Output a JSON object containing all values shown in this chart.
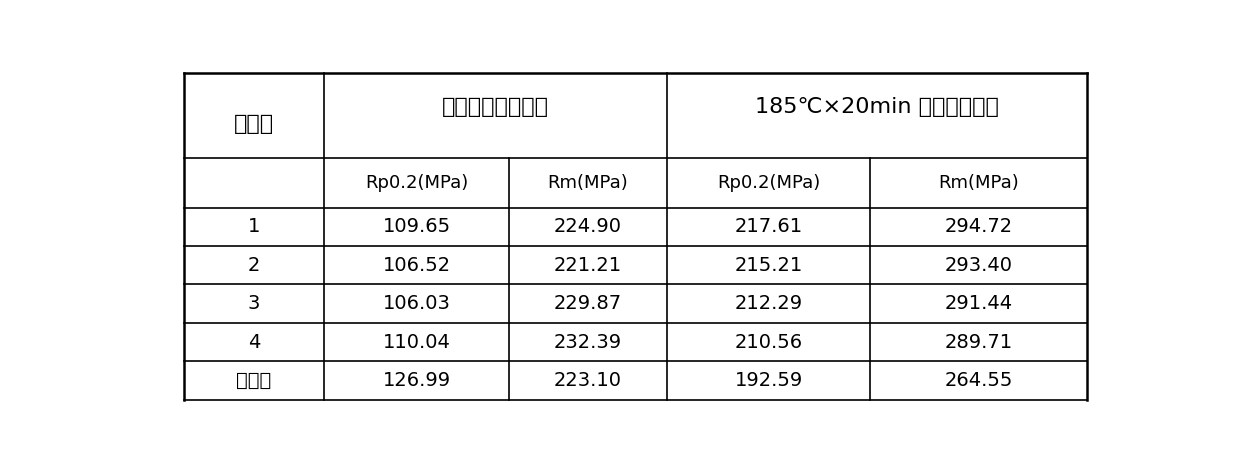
{
  "header_group1": "供货状态性能指标",
  "header_group2": "185℃×20min 模拟烤漆处理",
  "row_header": "实施例",
  "sub_headers": [
    "Rp0.2(MPa)",
    "Rm(MPa)",
    "Rp0.2(MPa)",
    "Rm(MPa)"
  ],
  "rows": [
    [
      "1",
      "109.65",
      "224.90",
      "217.61",
      "294.72"
    ],
    [
      "2",
      "106.52",
      "221.21",
      "215.21",
      "293.40"
    ],
    [
      "3",
      "106.03",
      "229.87",
      "212.29",
      "291.44"
    ],
    [
      "4",
      "110.04",
      "232.39",
      "210.56",
      "289.71"
    ],
    [
      "比较例",
      "126.99",
      "223.10",
      "192.59",
      "264.55"
    ]
  ],
  "bg_color": "#ffffff",
  "line_color": "#000000",
  "text_color": "#000000",
  "font_size_header": 16,
  "font_size_subheader": 13,
  "font_size_data": 14
}
